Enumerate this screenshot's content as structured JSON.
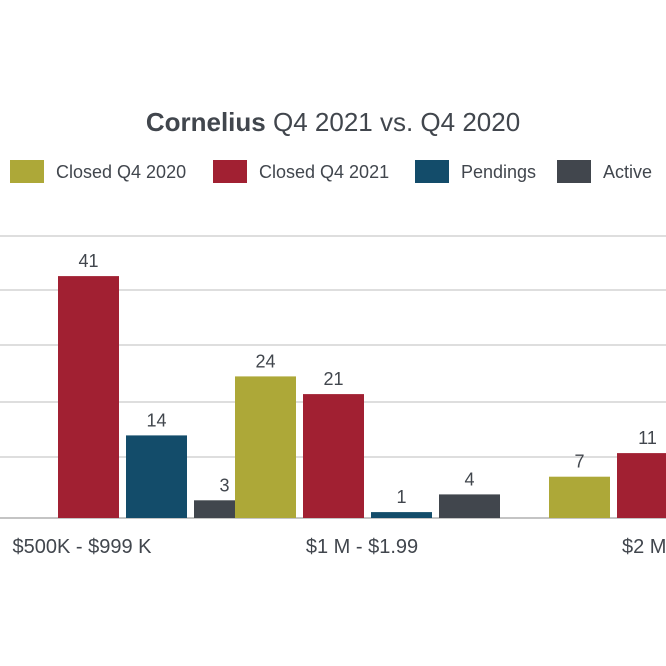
{
  "chart_data": {
    "type": "bar",
    "title_bold": "Cornelius",
    "title_rest": " Q4 2021 vs. Q4 2020",
    "categories": [
      "$500K - $999 K",
      "$1 M - $1.99",
      "$2 M"
    ],
    "series": [
      {
        "name": "Closed Q4 2020",
        "color": "#ADA838",
        "values": [
          null,
          24,
          7
        ]
      },
      {
        "name": "Closed Q4 2021",
        "color": "#A12032",
        "values": [
          41,
          21,
          11
        ]
      },
      {
        "name": "Pendings",
        "color": "#134C6A",
        "values": [
          14,
          1,
          null
        ]
      },
      {
        "name": "Active",
        "color": "#41464D",
        "values": [
          3,
          4,
          null
        ]
      }
    ],
    "ylim": [
      0,
      48
    ],
    "grid": true,
    "legend": "top"
  }
}
